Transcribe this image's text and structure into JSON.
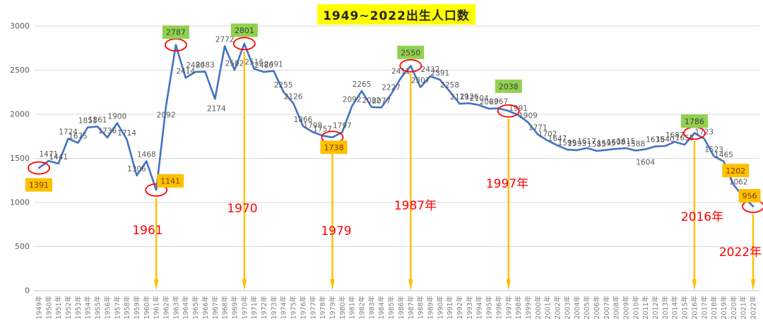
{
  "title": {
    "text": "1949~2022出生人口数",
    "highlight_color": "#FFFF00"
  },
  "chart_data": {
    "type": "line",
    "title": "1949~2022出生人口数",
    "xlabel": "",
    "ylabel": "",
    "ylim": [
      0,
      3000
    ],
    "y_ticks": [
      0,
      500,
      1000,
      1500,
      2000,
      2500,
      3000
    ],
    "grid": true,
    "line_color": "#4472C4",
    "categories": [
      "1949年",
      "1950年",
      "1951年",
      "1952年",
      "1953年",
      "1954年",
      "1955年",
      "1956年",
      "1957年",
      "1958年",
      "1959年",
      "1960年",
      "1961年",
      "1962年",
      "1963年",
      "1964年",
      "1965年",
      "1966年",
      "1967年",
      "1968年",
      "1969年",
      "1970年",
      "1971年",
      "1972年",
      "1973年",
      "1974年",
      "1975年",
      "1976年",
      "1977年",
      "1978年",
      "1979年",
      "1980年",
      "1981年",
      "1982年",
      "1983年",
      "1984年",
      "1985年",
      "1986年",
      "1987年",
      "1988年",
      "1989年",
      "1990年",
      "1991年",
      "1992年",
      "1993年",
      "1994年",
      "1995年",
      "1996年",
      "1997年",
      "1998年",
      "1999年",
      "2000年",
      "2001年",
      "2002年",
      "2003年",
      "2004年",
      "2005年",
      "2006年",
      "2007年",
      "2008年",
      "2009年",
      "2010年",
      "2011年",
      "2012年",
      "2013年",
      "2014年",
      "2015年",
      "2016年",
      "2017年",
      "2018年",
      "2019年",
      "2020年",
      "2021年",
      "2022年"
    ],
    "values": [
      1391,
      1471,
      1441,
      1724,
      1675,
      1851,
      1861,
      1736,
      1900,
      1714,
      1306,
      1468,
      1141,
      2092,
      2787,
      2414,
      2480,
      2483,
      2174,
      2772,
      2502,
      2801,
      2516,
      2480,
      2491,
      2255,
      2126,
      1866,
      1798,
      1757,
      1738,
      1797,
      2092,
      2265,
      2082,
      2077,
      2227,
      2411,
      2550,
      2307,
      2432,
      2391,
      2258,
      2119,
      2126,
      2104,
      2063,
      2067,
      2038,
      1991,
      1909,
      1771,
      1702,
      1647,
      1599,
      1593,
      1617,
      1585,
      1595,
      1608,
      1615,
      1588,
      1604,
      1635,
      1640,
      1687,
      1655,
      1786,
      1723,
      1523,
      1465,
      1202,
      1062,
      956
    ],
    "annotations": {
      "circled_years": [
        1949,
        1961,
        1963,
        1970,
        1979,
        1987,
        1997,
        2016,
        2022
      ],
      "arrow_years": [
        1961,
        1970,
        1979,
        1987,
        1997,
        2016,
        2022
      ],
      "arrow_color": "#FFC000",
      "circle_color": "#FF0000",
      "year_tags": [
        {
          "year": 1961,
          "label": "1961"
        },
        {
          "year": 1970,
          "label": "1970"
        },
        {
          "year": 1979,
          "label": "1979"
        },
        {
          "year": 1987,
          "label": "1987年"
        },
        {
          "year": 1997,
          "label": "1997年"
        },
        {
          "year": 2016,
          "label": "2016年"
        },
        {
          "year": 2022,
          "label": "2022年"
        }
      ],
      "year_tag_color": "#FF0000",
      "highlight_boxes": [
        {
          "year": 1949,
          "value": 1391,
          "bg": "#FFC000"
        },
        {
          "year": 1961,
          "value": 1141,
          "bg": "#FFC000"
        },
        {
          "year": 1963,
          "value": 2787,
          "bg": "#92D050"
        },
        {
          "year": 1970,
          "value": 2801,
          "bg": "#92D050"
        },
        {
          "year": 1979,
          "value": 1738,
          "bg": "#FFC000"
        },
        {
          "year": 1987,
          "value": 2550,
          "bg": "#92D050"
        },
        {
          "year": 1997,
          "value": 2038,
          "bg": "#92D050"
        },
        {
          "year": 2016,
          "value": 1786,
          "bg": "#92D050"
        },
        {
          "year": 2020,
          "value": 1202,
          "bg": "#FFC000"
        },
        {
          "year": 2022,
          "value": 956,
          "bg": "#FFC000"
        }
      ]
    }
  }
}
